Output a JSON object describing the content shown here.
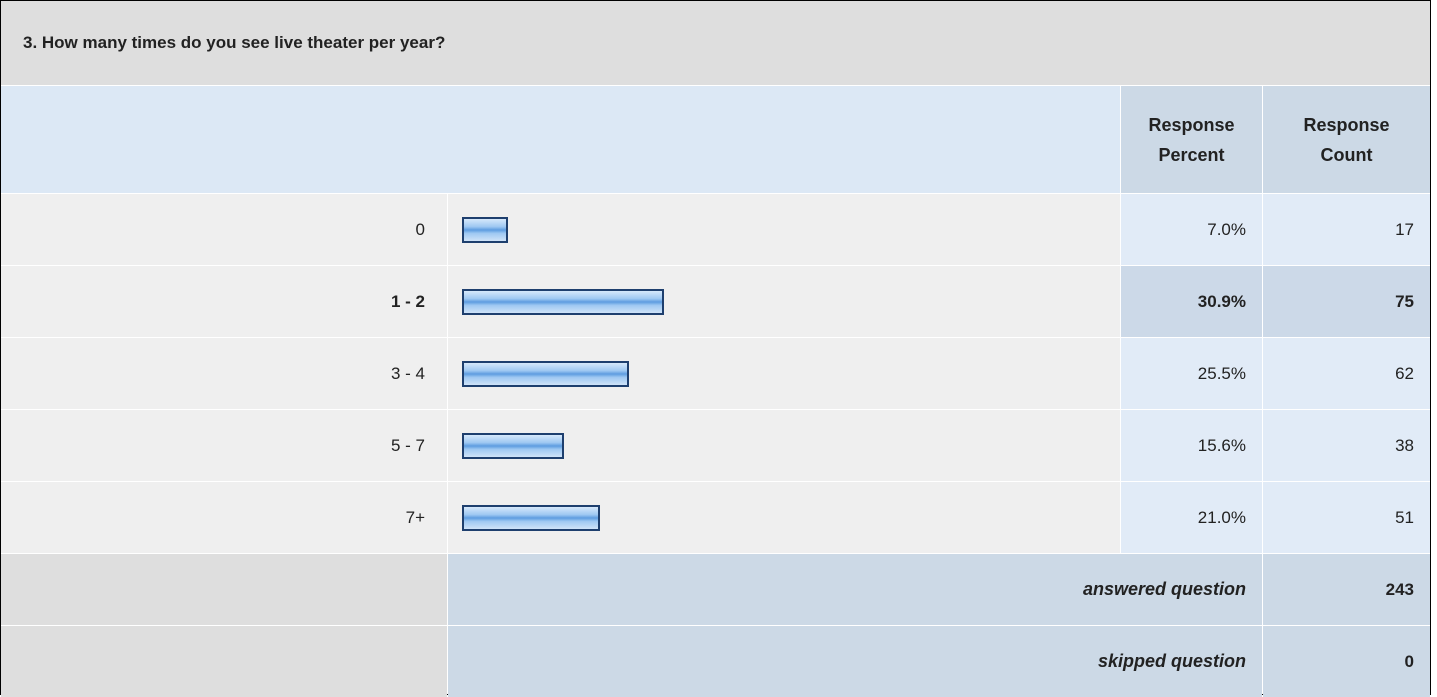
{
  "chart_data": {
    "type": "bar",
    "title": "3. How many times do you see live theater per year?",
    "column_headers": [
      "Response Percent",
      "Response Count"
    ],
    "categories": [
      "0",
      "1 - 2",
      "3 - 4",
      "5 - 7",
      "7+"
    ],
    "values": [
      7.0,
      30.9,
      25.5,
      15.6,
      21.0
    ],
    "value_labels": [
      "7.0%",
      "30.9%",
      "25.5%",
      "15.6%",
      "21.0%"
    ],
    "counts": [
      17,
      75,
      62,
      38,
      51
    ],
    "highlight": 1,
    "color": "#8fbdf0",
    "summary": [
      {
        "label": "answered question",
        "value": 243
      },
      {
        "label": "skipped question",
        "value": 0
      }
    ]
  }
}
